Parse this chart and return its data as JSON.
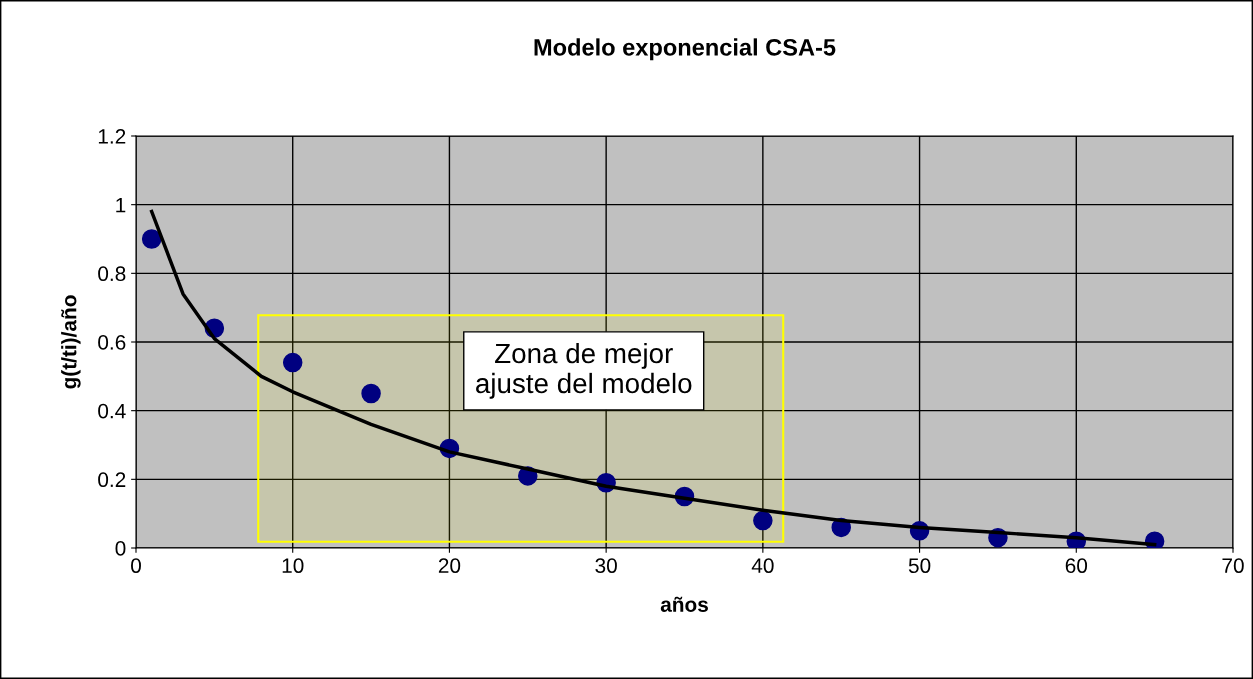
{
  "chart_data": {
    "type": "scatter",
    "title": "Modelo exponencial CSA-5",
    "xlabel": "años",
    "ylabel": "g(t/ti)/año",
    "series": [
      {
        "color": "#000080",
        "marker": "circle",
        "x": [
          1,
          5,
          10,
          15,
          20,
          25,
          30,
          35,
          40,
          45,
          50,
          55,
          60,
          65
        ],
        "values": [
          0.9,
          0.64,
          0.54,
          0.45,
          0.29,
          0.21,
          0.19,
          0.15,
          0.08,
          0.06,
          0.05,
          0.03,
          0.02,
          0.02
        ]
      },
      {
        "type": "line",
        "color": "#000000",
        "marker": "none",
        "x": [
          1,
          2,
          3,
          5,
          8,
          10,
          15,
          20,
          25,
          30,
          35,
          40,
          45,
          50,
          55,
          60,
          65
        ],
        "values": [
          0.98,
          0.86,
          0.74,
          0.61,
          0.5,
          0.455,
          0.36,
          0.28,
          0.23,
          0.18,
          0.145,
          0.11,
          0.08,
          0.06,
          0.045,
          0.03,
          0.01
        ]
      }
    ],
    "bands": [
      {
        "axis": "x",
        "from": 7.8,
        "to": 41.3,
        "label": "Zona de mejor\najuste del modelo",
        "color": "#ffff00"
      }
    ],
    "xlim": [
      0,
      70
    ],
    "xticks": [
      0,
      10,
      20,
      30,
      40,
      50,
      60,
      70
    ],
    "ylim": [
      0,
      1.2
    ],
    "yticks": [
      0,
      0.2,
      0.4,
      0.6,
      0.8,
      1,
      1.2
    ],
    "grid": true,
    "legend": false
  }
}
